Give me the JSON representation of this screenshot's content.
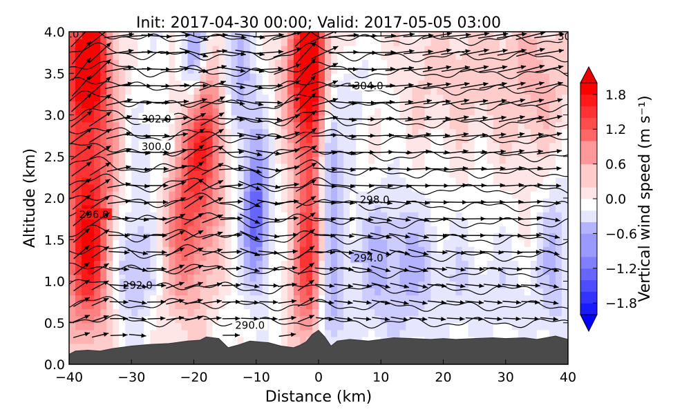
{
  "chart_data": {
    "type": "heatmap",
    "title": "Init: 2017-04-30 00:00; Valid: 2017-05-05 03:00",
    "xlabel": "Distance (km)",
    "ylabel": "Altitude (km)",
    "xlim": [
      -40,
      40
    ],
    "ylim": [
      0.0,
      4.0
    ],
    "xticks": [
      -40,
      -30,
      -20,
      -10,
      0,
      10,
      20,
      30,
      40
    ],
    "xtick_labels": [
      "−40",
      "−30",
      "−20",
      "−10",
      "0",
      "10",
      "20",
      "30",
      "40"
    ],
    "yticks": [
      0.0,
      0.5,
      1.0,
      1.5,
      2.0,
      2.5,
      3.0,
      3.5,
      4.0
    ],
    "ytick_labels": [
      "0.0",
      "0.5",
      "1.0",
      "1.5",
      "2.0",
      "2.5",
      "3.0",
      "3.5",
      "4.0"
    ],
    "colorbar": {
      "label": "Vertical wind speed (m s⁻¹)",
      "min": -2.0,
      "max": 2.0,
      "extend": "both",
      "cmap": "bwr",
      "colors": {
        "neg": "#0000ff",
        "mid": "#ffffff",
        "pos": "#ff0000"
      },
      "ticks": [
        1.8,
        1.2,
        0.6,
        0.0,
        -0.6,
        -1.2,
        -1.8
      ],
      "tick_labels": [
        "1.8",
        "1.2",
        "0.6",
        "0.0",
        "−0.6",
        "−1.2",
        "−1.8"
      ]
    },
    "w_features": [
      {
        "x": -37,
        "z": 2.6,
        "sx": 3.2,
        "sz": 1.3,
        "w": 1.6
      },
      {
        "x": -37,
        "z": 3.7,
        "sx": 2.0,
        "sz": 0.4,
        "w": 1.9
      },
      {
        "x": -37,
        "z": 1.2,
        "sx": 2.5,
        "sz": 0.6,
        "w": 1.0
      },
      {
        "x": -21,
        "z": 1.9,
        "sx": 3.2,
        "sz": 0.9,
        "w": 1.4
      },
      {
        "x": -18,
        "z": 2.9,
        "sx": 2.5,
        "sz": 0.6,
        "w": 1.2
      },
      {
        "x": -1.5,
        "z": 3.6,
        "sx": 2.6,
        "sz": 0.6,
        "w": 2.0
      },
      {
        "x": -1,
        "z": 2.3,
        "sx": 2.0,
        "sz": 1.1,
        "w": 1.3
      },
      {
        "x": -2,
        "z": 1.0,
        "sx": 2.0,
        "sz": 0.6,
        "w": 0.9
      },
      {
        "x": -30,
        "z": 1.2,
        "sx": 2.5,
        "sz": 0.5,
        "w": -0.7
      },
      {
        "x": -25,
        "z": 2.5,
        "sx": 3.0,
        "sz": 0.6,
        "w": -0.5
      },
      {
        "x": -20,
        "z": 3.6,
        "sx": 1.5,
        "sz": 0.5,
        "w": -1.1
      },
      {
        "x": -10,
        "z": 1.8,
        "sx": 1.4,
        "sz": 0.6,
        "w": -1.3
      },
      {
        "x": -13,
        "z": 3.3,
        "sx": 2.0,
        "sz": 0.6,
        "w": -0.7
      },
      {
        "x": 1.5,
        "z": 2.5,
        "sx": 1.4,
        "sz": 0.8,
        "w": -1.3
      },
      {
        "x": 1.5,
        "z": 0.7,
        "sx": 1.5,
        "sz": 0.5,
        "w": -0.7
      },
      {
        "x": 12,
        "z": 1.2,
        "sx": 5.0,
        "sz": 0.6,
        "w": -0.6
      },
      {
        "x": 38,
        "z": 1.4,
        "sx": 2.0,
        "sz": 0.8,
        "w": -0.5
      },
      {
        "x": 25,
        "z": 3.5,
        "sx": 12.0,
        "sz": 0.7,
        "w": 0.4
      },
      {
        "x": 36,
        "z": 3.2,
        "sx": 4.0,
        "sz": 1.0,
        "w": 0.3
      },
      {
        "x": 5,
        "z": 3.4,
        "sx": 4.0,
        "sz": 0.4,
        "w": -0.3
      },
      {
        "x": 27,
        "z": 0.9,
        "sx": 6.0,
        "sz": 0.4,
        "w": -0.25
      }
    ],
    "terrain": {
      "x": [
        -40,
        -39,
        -37,
        -35,
        -33,
        -30,
        -27,
        -24,
        -21,
        -19,
        -18,
        -16,
        -14.5,
        -13,
        -11,
        -8,
        -6,
        -4,
        -3,
        -2,
        -1,
        0,
        1,
        2,
        3,
        5,
        8,
        10,
        12,
        15,
        18,
        20,
        22,
        25,
        28,
        30,
        33,
        35,
        38,
        40
      ],
      "z": [
        0.12,
        0.16,
        0.17,
        0.16,
        0.19,
        0.22,
        0.24,
        0.25,
        0.28,
        0.29,
        0.33,
        0.31,
        0.2,
        0.23,
        0.28,
        0.26,
        0.22,
        0.2,
        0.23,
        0.27,
        0.36,
        0.41,
        0.33,
        0.22,
        0.28,
        0.3,
        0.28,
        0.3,
        0.32,
        0.31,
        0.3,
        0.31,
        0.3,
        0.31,
        0.32,
        0.31,
        0.32,
        0.3,
        0.34,
        0.3
      ]
    },
    "theta_contours": {
      "base": 0.5,
      "step": 0.2,
      "count": 19,
      "wave_features": [
        {
          "x": -36,
          "z": 2.5,
          "sx": 4,
          "sz": 1.4,
          "amp": 0.15
        },
        {
          "x": -20,
          "z": 2.0,
          "sx": 4,
          "sz": 1.0,
          "amp": 0.1
        },
        {
          "x": -1,
          "z": 3.0,
          "sx": 3,
          "sz": 1.2,
          "amp": 0.12
        }
      ]
    },
    "contour_labels": [
      {
        "text": "290.0",
        "x": -11,
        "z": 0.47
      },
      {
        "text": "292.0",
        "x": -29,
        "z": 0.95
      },
      {
        "text": "294.0",
        "x": 8,
        "z": 1.28
      },
      {
        "text": "296.0",
        "x": -36,
        "z": 1.8
      },
      {
        "text": "298.0",
        "x": 9,
        "z": 1.98
      },
      {
        "text": "300.0",
        "x": -26,
        "z": 2.62
      },
      {
        "text": "302.0",
        "x": -26,
        "z": 2.95
      },
      {
        "text": "304.0",
        "x": 8,
        "z": 3.35
      },
      {
        "text": "30",
        "x": 39.4,
        "z": 3.94
      },
      {
        "text": ".0",
        "x": -39.2,
        "z": 3.97
      }
    ],
    "wind_vectors": {
      "x_start": -38,
      "x_step": 3,
      "x_count": 26,
      "z_start": 0.35,
      "z_step": 0.2,
      "z_count": 19
    }
  }
}
